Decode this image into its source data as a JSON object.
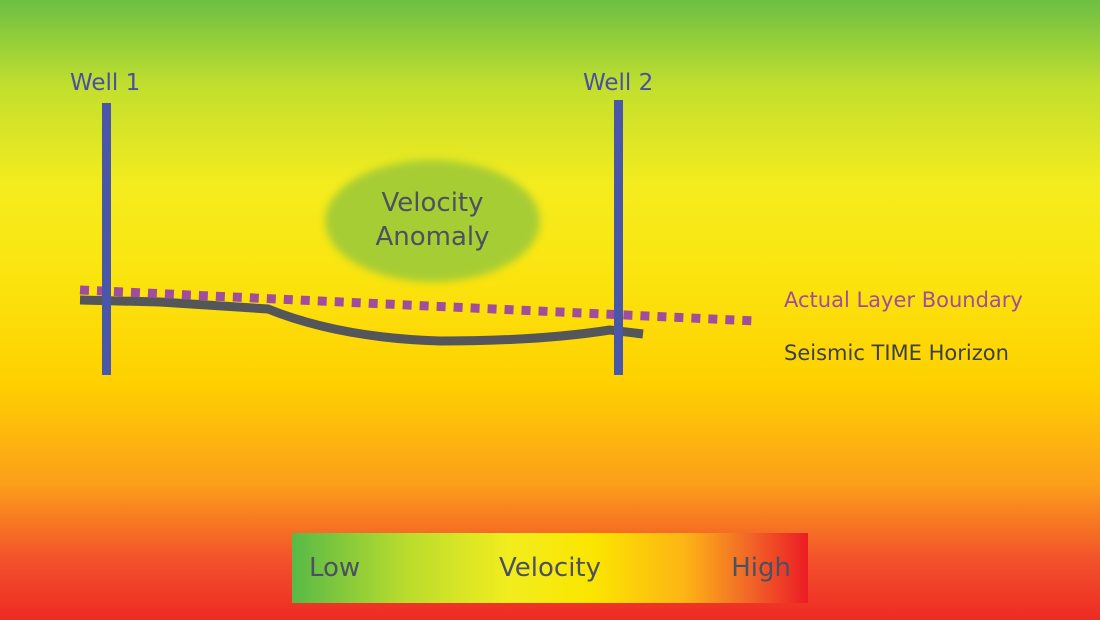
{
  "wells": [
    {
      "label": "Well 1"
    },
    {
      "label": "Well 2"
    }
  ],
  "anomaly": {
    "line1": "Velocity",
    "line2": "Anomaly"
  },
  "legend": {
    "actual_layer_boundary": "Actual Layer Boundary",
    "seismic_time_horizon": "Seismic TIME Horizon"
  },
  "scale": {
    "low": "Low",
    "title": "Velocity",
    "high": "High"
  },
  "colors": {
    "well": "#4a56a8",
    "actual_boundary": "#a14d9d",
    "seismic_horizon": "#55565a",
    "low_velocity": "#58b947",
    "high_velocity": "#ec1c24"
  }
}
